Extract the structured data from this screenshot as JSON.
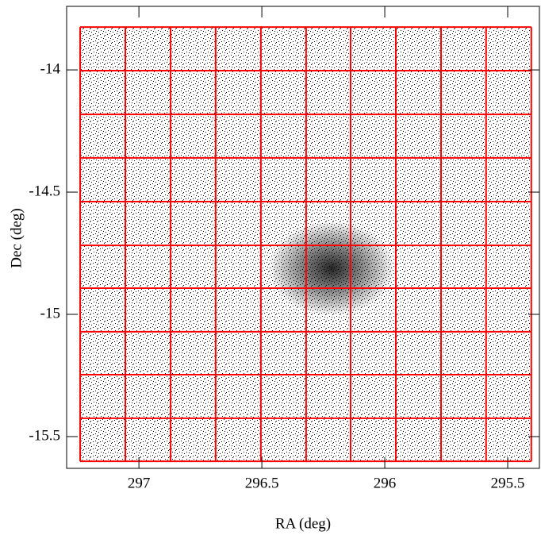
{
  "chart_data": {
    "type": "scatter",
    "x_label": "RA (deg)",
    "y_label": "Dec (deg)",
    "xlim": [
      297.294,
      295.371
    ],
    "ylim": [
      -15.63,
      -13.74
    ],
    "xticks": [
      297,
      296.5,
      296,
      295.5
    ],
    "yticks": [
      -14,
      -14.5,
      -15,
      -15.5
    ],
    "tiles": {
      "color": "#ff0000",
      "ra_edges": [
        297.239,
        297.055,
        296.871,
        296.688,
        296.504,
        296.32,
        296.139,
        295.955,
        295.771,
        295.588,
        295.404
      ],
      "dec_edges": [
        -13.825,
        -14.003,
        -14.182,
        -14.36,
        -14.539,
        -14.718,
        -14.893,
        -15.071,
        -15.247,
        -15.425,
        -15.601
      ]
    }
  }
}
